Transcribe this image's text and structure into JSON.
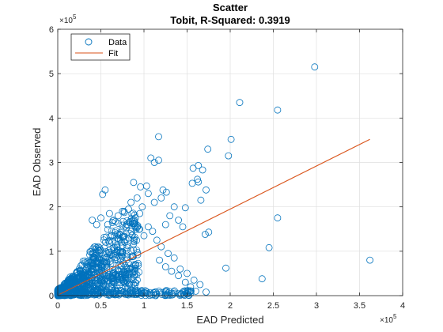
{
  "chart_data": {
    "type": "scatter",
    "title": "Scatter",
    "subtitle": "Tobit, R-Squared: 0.3919",
    "xlabel": "EAD Predicted",
    "ylabel": "EAD Observed",
    "x_exponent_label": "×10",
    "x_exponent_power": "5",
    "y_exponent_label": "×10",
    "y_exponent_power": "5",
    "xlim": [
      0,
      4
    ],
    "ylim": [
      0,
      6
    ],
    "x_ticks": [
      0,
      0.5,
      1,
      1.5,
      2,
      2.5,
      3,
      3.5,
      4
    ],
    "x_tick_labels": [
      "0",
      "0.5",
      "1",
      "1.5",
      "2",
      "2.5",
      "3",
      "3.5",
      "4"
    ],
    "y_ticks": [
      0,
      1,
      2,
      3,
      4,
      5,
      6
    ],
    "y_tick_labels": [
      "0",
      "1",
      "2",
      "3",
      "4",
      "5",
      "6"
    ],
    "grid": true,
    "legend_position": "top-left",
    "legend": [
      {
        "name": "Data",
        "marker": "circle"
      },
      {
        "name": "Fit",
        "marker": "line"
      }
    ],
    "colors": {
      "data": "#0072BD",
      "fit": "#D95319"
    },
    "fit_line": {
      "x": [
        0.02,
        3.62
      ],
      "y": [
        0.03,
        3.52
      ]
    },
    "series": [
      {
        "name": "Data",
        "points": [
          [
            2.98,
            5.15
          ],
          [
            2.11,
            4.35
          ],
          [
            2.55,
            4.18
          ],
          [
            2.01,
            3.52
          ],
          [
            1.17,
            3.58
          ],
          [
            1.98,
            3.15
          ],
          [
            1.74,
            3.3
          ],
          [
            1.63,
            2.93
          ],
          [
            1.57,
            2.87
          ],
          [
            1.68,
            2.83
          ],
          [
            1.08,
            3.1
          ],
          [
            1.17,
            3.05
          ],
          [
            1.12,
            3.0
          ],
          [
            1.72,
            2.38
          ],
          [
            1.62,
            2.62
          ],
          [
            1.63,
            2.56
          ],
          [
            1.56,
            2.53
          ],
          [
            1.48,
            1.98
          ],
          [
            1.66,
            2.15
          ],
          [
            1.03,
            2.47
          ],
          [
            0.96,
            2.45
          ],
          [
            0.88,
            2.55
          ],
          [
            1.22,
            2.38
          ],
          [
            1.26,
            2.33
          ],
          [
            0.55,
            2.38
          ],
          [
            0.52,
            2.28
          ],
          [
            2.55,
            1.75
          ],
          [
            1.71,
            1.38
          ],
          [
            1.75,
            1.43
          ],
          [
            2.45,
            1.08
          ],
          [
            3.62,
            0.8
          ],
          [
            1.95,
            0.62
          ],
          [
            2.37,
            0.38
          ],
          [
            1.72,
            0.08
          ],
          [
            1.54,
            0.2
          ],
          [
            1.48,
            0.3
          ],
          [
            1.4,
            0.45
          ],
          [
            1.32,
            0.55
          ],
          [
            1.25,
            0.65
          ],
          [
            1.18,
            0.8
          ],
          [
            1.2,
            2.2
          ],
          [
            1.12,
            2.1
          ],
          [
            1.05,
            2.3
          ],
          [
            0.98,
            2.0
          ],
          [
            0.92,
            2.2
          ],
          [
            0.85,
            2.1
          ],
          [
            0.95,
            1.85
          ],
          [
            0.9,
            1.75
          ],
          [
            0.82,
            1.95
          ],
          [
            0.75,
            1.9
          ],
          [
            0.7,
            1.8
          ],
          [
            0.65,
            1.7
          ],
          [
            0.6,
            1.85
          ],
          [
            0.58,
            1.6
          ],
          [
            0.5,
            1.75
          ],
          [
            0.45,
            1.6
          ],
          [
            0.4,
            1.7
          ],
          [
            1.05,
            1.55
          ],
          [
            1.1,
            1.45
          ],
          [
            1.0,
            1.35
          ],
          [
            0.95,
            1.5
          ],
          [
            1.3,
            1.8
          ],
          [
            1.35,
            2.0
          ],
          [
            1.25,
            1.6
          ],
          [
            1.4,
            1.7
          ],
          [
            1.45,
            1.55
          ],
          [
            1.15,
            1.25
          ],
          [
            1.2,
            1.1
          ],
          [
            1.28,
            0.95
          ],
          [
            1.35,
            0.85
          ],
          [
            1.42,
            0.6
          ],
          [
            1.5,
            0.5
          ],
          [
            1.58,
            0.35
          ],
          [
            1.65,
            0.25
          ],
          [
            1.6,
            0.1
          ]
        ]
      }
    ]
  }
}
